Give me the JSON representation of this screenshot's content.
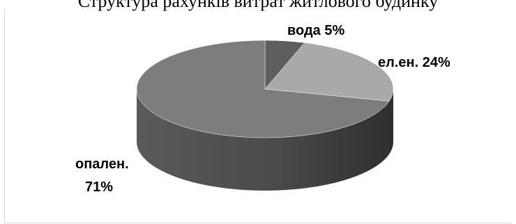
{
  "page": {
    "top_text": "Структура рахунків витрат житлового будинку"
  },
  "chart_data": {
    "type": "pie",
    "three_d": true,
    "title": "",
    "slices": [
      {
        "label": "вода",
        "value": 5,
        "display": "вода 5%",
        "color": "#5e5e5e"
      },
      {
        "label": "ел.ен.",
        "value": 24,
        "display": "ел.ен. 24%",
        "color": "#a9a9a9"
      },
      {
        "label": "опален.",
        "value": 71,
        "display_line1": "опален.",
        "display_line2": "71%",
        "color": "#7d7d7d"
      }
    ],
    "legend": "none",
    "data_labels": "outside"
  }
}
